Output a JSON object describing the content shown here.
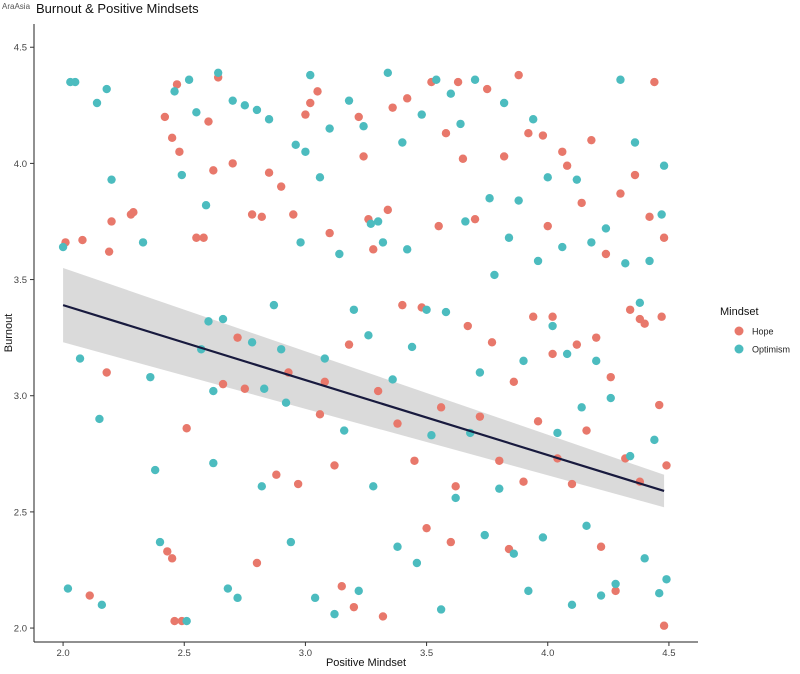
{
  "watermark": "AraAsia",
  "chart_data": {
    "type": "scatter",
    "title": "Burnout & Positive Mindsets",
    "xlabel": "Positive Mindset",
    "ylabel": "Burnout",
    "xlim": [
      1.88,
      4.62
    ],
    "ylim": [
      1.94,
      4.6
    ],
    "x_ticks": [
      2.0,
      2.5,
      3.0,
      3.5,
      4.0,
      4.5
    ],
    "y_ticks": [
      2.0,
      2.5,
      3.0,
      3.5,
      4.0,
      4.5
    ],
    "x_tick_labels": [
      "2.0",
      "2.5",
      "3.0",
      "3.5",
      "4.0",
      "4.5"
    ],
    "y_tick_labels": [
      "2.0",
      "2.5",
      "3.0",
      "3.5",
      "4.0",
      "4.5"
    ],
    "grid": false,
    "legend": {
      "title": "Mindset",
      "position": "right",
      "entries": [
        {
          "label": "Hope",
          "color": "#E8786B"
        },
        {
          "label": "Optimism",
          "color": "#4CBCBF"
        }
      ]
    },
    "trend_line": {
      "x": [
        2.0,
        4.48
      ],
      "y": [
        3.39,
        2.59
      ],
      "ci_upper": [
        3.55,
        2.66
      ],
      "ci_lower": [
        3.23,
        2.52
      ],
      "color": "#181A3E",
      "band_color": "#D3D3D3"
    },
    "series": [
      {
        "name": "Hope",
        "color": "#E8786B",
        "points": [
          [
            2.01,
            3.66
          ],
          [
            2.08,
            3.67
          ],
          [
            2.11,
            2.14
          ],
          [
            2.19,
            3.62
          ],
          [
            2.2,
            3.75
          ],
          [
            2.28,
            3.78
          ],
          [
            2.29,
            3.79
          ],
          [
            2.18,
            3.1
          ],
          [
            2.42,
            4.2
          ],
          [
            2.43,
            2.33
          ],
          [
            2.45,
            2.3
          ],
          [
            2.47,
            4.34
          ],
          [
            2.45,
            4.11
          ],
          [
            2.48,
            4.05
          ],
          [
            2.46,
            2.03
          ],
          [
            2.49,
            2.03
          ],
          [
            2.51,
            2.86
          ],
          [
            2.55,
            3.68
          ],
          [
            2.58,
            3.68
          ],
          [
            2.6,
            4.18
          ],
          [
            2.62,
            3.97
          ],
          [
            2.64,
            4.37
          ],
          [
            2.66,
            3.05
          ],
          [
            2.7,
            4.0
          ],
          [
            2.72,
            3.25
          ],
          [
            2.75,
            3.03
          ],
          [
            2.78,
            3.78
          ],
          [
            2.8,
            2.28
          ],
          [
            2.82,
            3.77
          ],
          [
            2.85,
            3.96
          ],
          [
            2.88,
            2.66
          ],
          [
            2.9,
            3.9
          ],
          [
            2.93,
            3.1
          ],
          [
            2.95,
            3.78
          ],
          [
            2.97,
            2.62
          ],
          [
            3.0,
            4.21
          ],
          [
            3.02,
            4.26
          ],
          [
            3.05,
            4.31
          ],
          [
            3.06,
            2.92
          ],
          [
            3.08,
            3.06
          ],
          [
            3.1,
            3.7
          ],
          [
            3.12,
            2.7
          ],
          [
            3.15,
            2.18
          ],
          [
            3.18,
            3.22
          ],
          [
            3.2,
            2.09
          ],
          [
            3.22,
            4.2
          ],
          [
            3.24,
            4.03
          ],
          [
            3.26,
            3.76
          ],
          [
            3.28,
            3.63
          ],
          [
            3.3,
            3.02
          ],
          [
            3.32,
            2.05
          ],
          [
            3.34,
            3.8
          ],
          [
            3.36,
            4.24
          ],
          [
            3.38,
            2.88
          ],
          [
            3.4,
            3.39
          ],
          [
            3.42,
            4.28
          ],
          [
            3.45,
            2.72
          ],
          [
            3.48,
            3.38
          ],
          [
            3.5,
            2.43
          ],
          [
            3.52,
            4.35
          ],
          [
            3.55,
            3.73
          ],
          [
            3.58,
            4.13
          ],
          [
            3.6,
            2.37
          ],
          [
            3.62,
            2.61
          ],
          [
            3.63,
            4.35
          ],
          [
            3.65,
            4.02
          ],
          [
            3.67,
            3.3
          ],
          [
            3.7,
            3.76
          ],
          [
            3.72,
            2.91
          ],
          [
            3.75,
            4.32
          ],
          [
            3.77,
            3.23
          ],
          [
            3.8,
            2.72
          ],
          [
            3.82,
            4.03
          ],
          [
            3.84,
            2.34
          ],
          [
            3.86,
            3.06
          ],
          [
            3.88,
            4.38
          ],
          [
            3.9,
            2.63
          ],
          [
            3.92,
            4.13
          ],
          [
            3.94,
            3.34
          ],
          [
            3.96,
            2.89
          ],
          [
            3.98,
            4.12
          ],
          [
            4.0,
            3.73
          ],
          [
            4.02,
            3.34
          ],
          [
            4.04,
            2.73
          ],
          [
            4.06,
            4.05
          ],
          [
            4.08,
            3.99
          ],
          [
            4.1,
            2.62
          ],
          [
            4.12,
            3.22
          ],
          [
            4.14,
            3.83
          ],
          [
            4.16,
            2.85
          ],
          [
            4.18,
            4.1
          ],
          [
            4.2,
            3.25
          ],
          [
            4.22,
            2.35
          ],
          [
            4.24,
            3.61
          ],
          [
            4.26,
            3.08
          ],
          [
            4.28,
            2.16
          ],
          [
            4.3,
            3.87
          ],
          [
            4.32,
            2.73
          ],
          [
            4.34,
            3.37
          ],
          [
            4.36,
            3.95
          ],
          [
            4.38,
            2.63
          ],
          [
            4.4,
            3.31
          ],
          [
            4.42,
            3.77
          ],
          [
            4.44,
            4.35
          ],
          [
            4.46,
            2.96
          ],
          [
            4.47,
            3.34
          ],
          [
            4.48,
            3.68
          ],
          [
            4.49,
            2.7
          ],
          [
            4.48,
            2.01
          ],
          [
            4.38,
            3.33
          ],
          [
            4.02,
            3.18
          ],
          [
            3.56,
            2.95
          ]
        ]
      },
      {
        "name": "Optimism",
        "color": "#4CBCBF",
        "points": [
          [
            2.0,
            3.64
          ],
          [
            2.03,
            4.35
          ],
          [
            2.05,
            4.35
          ],
          [
            2.02,
            2.17
          ],
          [
            2.07,
            3.16
          ],
          [
            2.14,
            4.26
          ],
          [
            2.16,
            2.1
          ],
          [
            2.18,
            4.32
          ],
          [
            2.2,
            3.93
          ],
          [
            2.15,
            2.9
          ],
          [
            2.33,
            3.66
          ],
          [
            2.36,
            3.08
          ],
          [
            2.38,
            2.68
          ],
          [
            2.4,
            2.37
          ],
          [
            2.46,
            4.31
          ],
          [
            2.49,
            3.95
          ],
          [
            2.51,
            2.03
          ],
          [
            2.52,
            4.36
          ],
          [
            2.55,
            4.22
          ],
          [
            2.57,
            3.2
          ],
          [
            2.59,
            3.82
          ],
          [
            2.6,
            3.32
          ],
          [
            2.62,
            2.71
          ],
          [
            2.64,
            4.39
          ],
          [
            2.66,
            3.33
          ],
          [
            2.68,
            2.17
          ],
          [
            2.7,
            4.27
          ],
          [
            2.72,
            2.13
          ],
          [
            2.75,
            4.25
          ],
          [
            2.78,
            3.23
          ],
          [
            2.8,
            4.23
          ],
          [
            2.82,
            2.61
          ],
          [
            2.83,
            3.03
          ],
          [
            2.85,
            4.19
          ],
          [
            2.87,
            3.39
          ],
          [
            2.9,
            3.2
          ],
          [
            2.92,
            2.97
          ],
          [
            2.94,
            2.37
          ],
          [
            2.96,
            4.08
          ],
          [
            2.98,
            3.66
          ],
          [
            3.0,
            4.05
          ],
          [
            3.02,
            4.38
          ],
          [
            3.04,
            2.13
          ],
          [
            3.06,
            3.94
          ],
          [
            3.08,
            3.16
          ],
          [
            3.1,
            4.15
          ],
          [
            3.12,
            2.06
          ],
          [
            3.14,
            3.61
          ],
          [
            3.16,
            2.85
          ],
          [
            3.18,
            4.27
          ],
          [
            3.2,
            3.37
          ],
          [
            3.22,
            2.16
          ],
          [
            3.24,
            4.16
          ],
          [
            3.26,
            3.26
          ],
          [
            3.28,
            2.61
          ],
          [
            3.3,
            3.75
          ],
          [
            3.32,
            3.66
          ],
          [
            3.34,
            4.39
          ],
          [
            3.36,
            3.07
          ],
          [
            3.38,
            2.35
          ],
          [
            3.4,
            4.09
          ],
          [
            3.42,
            3.63
          ],
          [
            3.44,
            3.21
          ],
          [
            3.46,
            2.28
          ],
          [
            3.48,
            4.21
          ],
          [
            3.5,
            3.37
          ],
          [
            3.52,
            2.83
          ],
          [
            3.54,
            4.36
          ],
          [
            3.56,
            2.08
          ],
          [
            3.58,
            3.36
          ],
          [
            3.6,
            4.3
          ],
          [
            3.62,
            2.56
          ],
          [
            3.64,
            4.17
          ],
          [
            3.66,
            3.75
          ],
          [
            3.68,
            2.84
          ],
          [
            3.7,
            4.36
          ],
          [
            3.72,
            3.1
          ],
          [
            3.74,
            2.4
          ],
          [
            3.76,
            3.85
          ],
          [
            3.78,
            3.52
          ],
          [
            3.8,
            2.6
          ],
          [
            3.82,
            4.26
          ],
          [
            3.84,
            3.68
          ],
          [
            3.86,
            2.32
          ],
          [
            3.88,
            3.84
          ],
          [
            3.9,
            3.15
          ],
          [
            3.92,
            2.16
          ],
          [
            3.94,
            4.19
          ],
          [
            3.96,
            3.58
          ],
          [
            3.98,
            2.39
          ],
          [
            4.0,
            3.94
          ],
          [
            4.02,
            3.3
          ],
          [
            4.04,
            2.84
          ],
          [
            4.06,
            3.64
          ],
          [
            4.08,
            3.18
          ],
          [
            4.1,
            2.1
          ],
          [
            4.12,
            3.93
          ],
          [
            4.14,
            2.95
          ],
          [
            4.16,
            2.44
          ],
          [
            4.18,
            3.66
          ],
          [
            4.2,
            3.15
          ],
          [
            4.22,
            2.14
          ],
          [
            4.24,
            3.72
          ],
          [
            4.26,
            2.99
          ],
          [
            4.28,
            2.19
          ],
          [
            4.3,
            4.36
          ],
          [
            4.32,
            3.57
          ],
          [
            4.34,
            2.74
          ],
          [
            4.36,
            4.09
          ],
          [
            4.38,
            3.4
          ],
          [
            4.4,
            2.3
          ],
          [
            4.42,
            3.58
          ],
          [
            4.44,
            2.81
          ],
          [
            4.46,
            2.15
          ],
          [
            4.48,
            3.99
          ],
          [
            4.49,
            2.21
          ],
          [
            4.47,
            3.78
          ],
          [
            3.27,
            3.74
          ],
          [
            2.62,
            3.02
          ]
        ]
      }
    ]
  }
}
